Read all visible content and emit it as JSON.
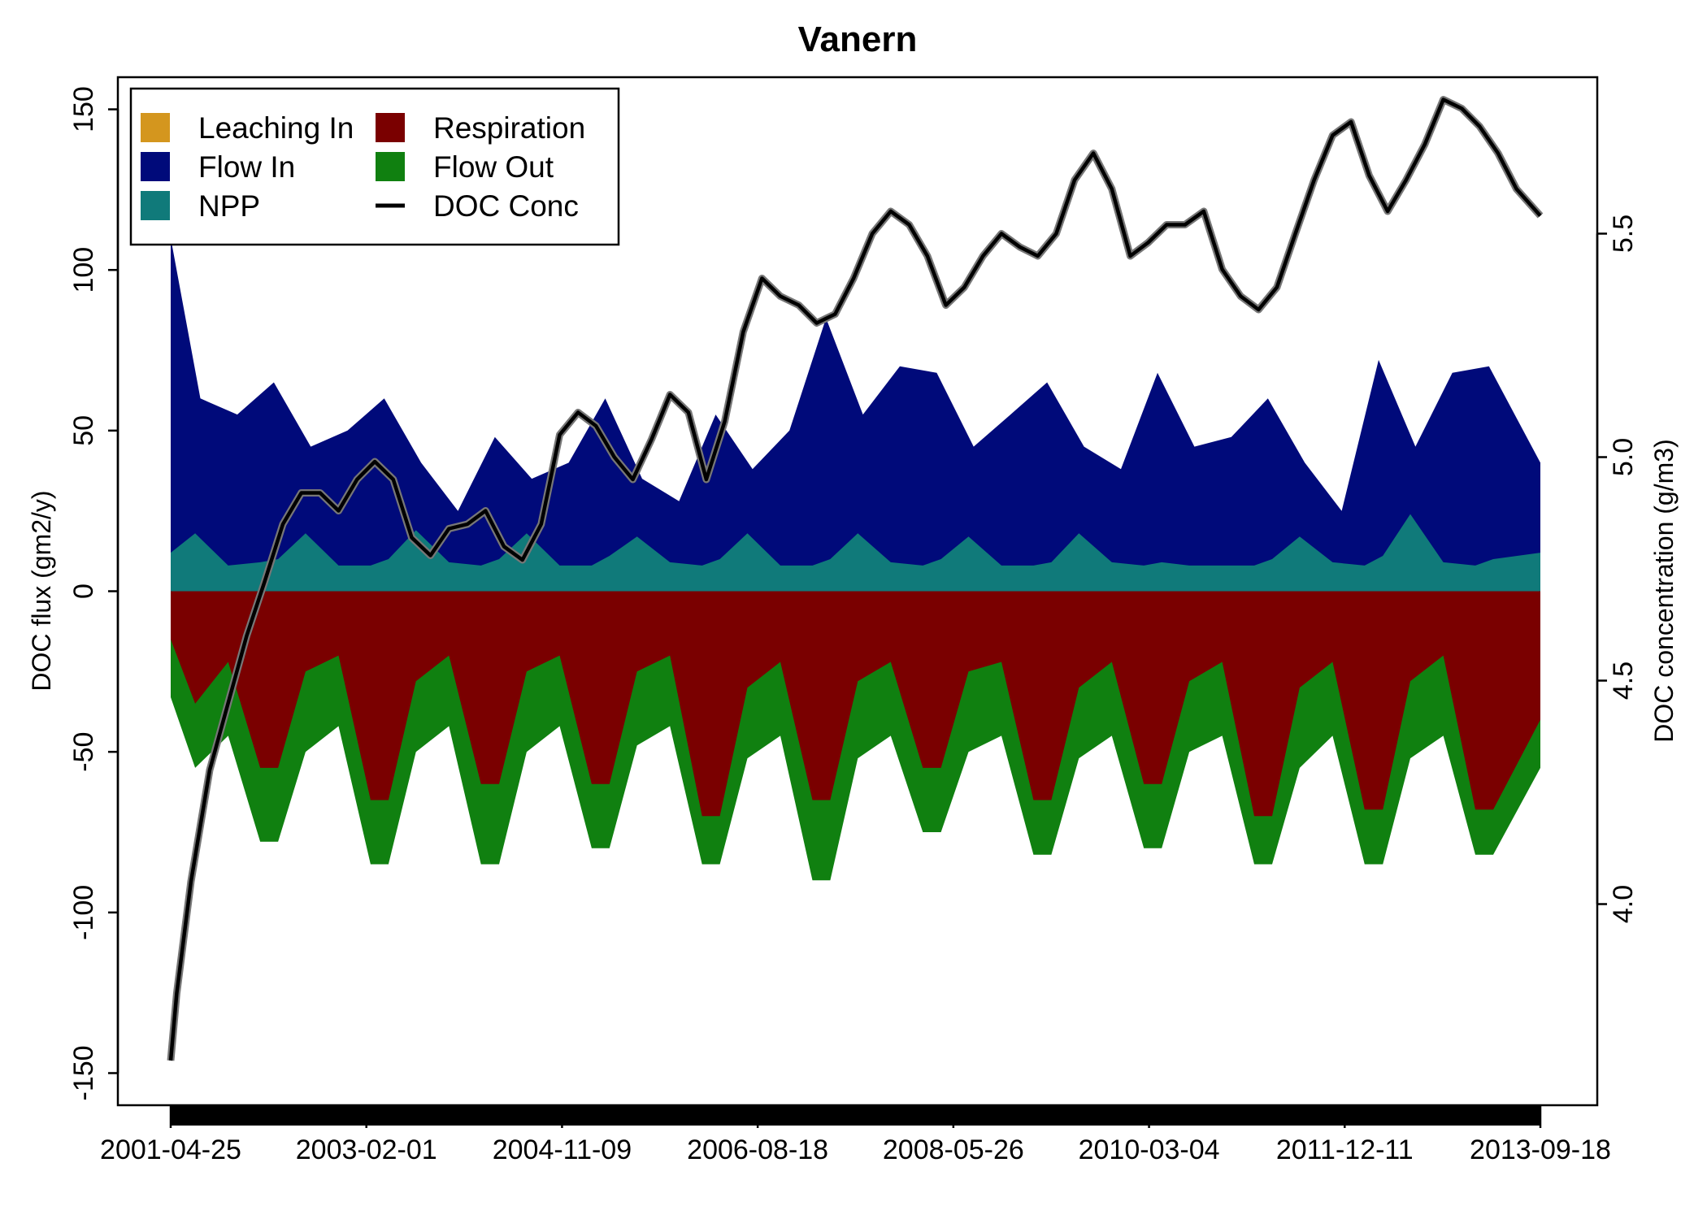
{
  "chart_data": {
    "type": "area",
    "title": "Vanern",
    "ylabel": "DOC flux (gm2/y)",
    "y2label": "DOC concentration (g/m3)",
    "xlabel": "",
    "ylim": [
      -160,
      160
    ],
    "y2lim": [
      3.55,
      5.85
    ],
    "yticks": [
      -150,
      -100,
      -50,
      0,
      50,
      100,
      150
    ],
    "y2ticks": [
      "4.0",
      "4.5",
      "5.0",
      "5.5"
    ],
    "xlim": [
      "2001-04-25",
      "2013-09-18"
    ],
    "xticks": [
      "2001-04-25",
      "2003-02-01",
      "2004-11-09",
      "2006-08-18",
      "2008-05-26",
      "2010-03-04",
      "2011-12-11",
      "2013-09-18"
    ],
    "grid": false,
    "legend_position": "top-left",
    "legend": [
      {
        "label": "Leaching In",
        "color": "#d4961e",
        "kind": "box"
      },
      {
        "label": "Respiration",
        "color": "#7a0000",
        "kind": "box"
      },
      {
        "label": "Flow In",
        "color": "#000a7a",
        "kind": "box"
      },
      {
        "label": "Flow Out",
        "color": "#108010",
        "kind": "box"
      },
      {
        "label": "NPP",
        "color": "#107a7a",
        "kind": "box"
      },
      {
        "label": "DOC Conc",
        "color": "#000000",
        "kind": "line"
      }
    ],
    "colors": {
      "leaching_in": "#d4961e",
      "flow_in": "#000a7a",
      "npp": "#107a7a",
      "respiration": "#7a0000",
      "flow_out": "#108010",
      "doc_conc": "#000000"
    },
    "series": [
      {
        "name": "Flow In",
        "x": [
          "2001-04-25",
          "2001-08-01",
          "2001-12-01",
          "2002-04-01",
          "2002-08-01",
          "2002-12-01",
          "2003-04-01",
          "2003-08-01",
          "2003-12-01",
          "2004-04-01",
          "2004-08-01",
          "2004-12-01",
          "2005-04-01",
          "2005-08-01",
          "2005-12-01",
          "2006-04-01",
          "2006-08-01",
          "2006-12-01",
          "2007-04-01",
          "2007-08-01",
          "2007-12-01",
          "2008-04-01",
          "2008-08-01",
          "2008-12-01",
          "2009-04-01",
          "2009-08-01",
          "2009-12-01",
          "2010-04-01",
          "2010-08-01",
          "2010-12-01",
          "2011-04-01",
          "2011-08-01",
          "2011-12-01",
          "2012-04-01",
          "2012-08-01",
          "2012-12-01",
          "2013-04-01",
          "2013-09-18"
        ],
        "values": [
          110,
          60,
          55,
          65,
          45,
          50,
          60,
          40,
          25,
          48,
          35,
          40,
          60,
          35,
          28,
          55,
          38,
          50,
          85,
          55,
          70,
          68,
          45,
          55,
          65,
          45,
          38,
          68,
          45,
          48,
          60,
          40,
          25,
          72,
          45,
          68,
          70,
          40
        ]
      },
      {
        "name": "NPP",
        "x": [
          "2001-04-25",
          "2001-07-15",
          "2001-11-01",
          "2002-02-15",
          "2002-04-15",
          "2002-07-15",
          "2002-11-01",
          "2003-02-15",
          "2003-04-15",
          "2003-07-15",
          "2003-11-01",
          "2004-02-15",
          "2004-04-15",
          "2004-07-15",
          "2004-11-01",
          "2005-02-15",
          "2005-04-15",
          "2005-07-15",
          "2005-11-01",
          "2006-02-15",
          "2006-04-15",
          "2006-07-15",
          "2006-11-01",
          "2007-02-15",
          "2007-04-15",
          "2007-07-15",
          "2007-11-01",
          "2008-02-15",
          "2008-04-15",
          "2008-07-15",
          "2008-11-01",
          "2009-02-15",
          "2009-04-15",
          "2009-07-15",
          "2009-11-01",
          "2010-02-15",
          "2010-04-15",
          "2010-07-15",
          "2010-11-01",
          "2011-02-15",
          "2011-04-15",
          "2011-07-15",
          "2011-11-01",
          "2012-02-15",
          "2012-04-15",
          "2012-07-15",
          "2012-11-01",
          "2013-02-15",
          "2013-04-15",
          "2013-09-18"
        ],
        "values": [
          12,
          18,
          8,
          9,
          10,
          18,
          8,
          8,
          10,
          19,
          9,
          8,
          10,
          18,
          8,
          8,
          11,
          17,
          9,
          8,
          10,
          18,
          8,
          8,
          10,
          18,
          9,
          8,
          10,
          17,
          8,
          8,
          9,
          18,
          9,
          8,
          9,
          8,
          8,
          8,
          10,
          17,
          9,
          8,
          11,
          24,
          9,
          8,
          10,
          12
        ]
      },
      {
        "name": "Respiration",
        "x": [
          "2001-04-25",
          "2001-07-15",
          "2001-11-01",
          "2002-02-15",
          "2002-04-15",
          "2002-07-15",
          "2002-11-01",
          "2003-02-15",
          "2003-04-15",
          "2003-07-15",
          "2003-11-01",
          "2004-02-15",
          "2004-04-15",
          "2004-07-15",
          "2004-11-01",
          "2005-02-15",
          "2005-04-15",
          "2005-07-15",
          "2005-11-01",
          "2006-02-15",
          "2006-04-15",
          "2006-07-15",
          "2006-11-01",
          "2007-02-15",
          "2007-04-15",
          "2007-07-15",
          "2007-11-01",
          "2008-02-15",
          "2008-04-15",
          "2008-07-15",
          "2008-11-01",
          "2009-02-15",
          "2009-04-15",
          "2009-07-15",
          "2009-11-01",
          "2010-02-15",
          "2010-04-15",
          "2010-07-15",
          "2010-11-01",
          "2011-02-15",
          "2011-04-15",
          "2011-07-15",
          "2011-11-01",
          "2012-02-15",
          "2012-04-15",
          "2012-07-15",
          "2012-11-01",
          "2013-02-15",
          "2013-04-15",
          "2013-09-18"
        ],
        "values": [
          -15,
          -35,
          -22,
          -55,
          -55,
          -25,
          -20,
          -65,
          -65,
          -28,
          -20,
          -60,
          -60,
          -25,
          -20,
          -60,
          -60,
          -25,
          -20,
          -70,
          -70,
          -30,
          -22,
          -65,
          -65,
          -28,
          -22,
          -55,
          -55,
          -25,
          -22,
          -65,
          -65,
          -30,
          -22,
          -60,
          -60,
          -28,
          -22,
          -70,
          -70,
          -30,
          -22,
          -68,
          -68,
          -28,
          -20,
          -68,
          -68,
          -40
        ]
      },
      {
        "name": "Flow Out",
        "x": [
          "2001-04-25",
          "2001-07-15",
          "2001-11-01",
          "2002-02-15",
          "2002-04-15",
          "2002-07-15",
          "2002-11-01",
          "2003-02-15",
          "2003-04-15",
          "2003-07-15",
          "2003-11-01",
          "2004-02-15",
          "2004-04-15",
          "2004-07-15",
          "2004-11-01",
          "2005-02-15",
          "2005-04-15",
          "2005-07-15",
          "2005-11-01",
          "2006-02-15",
          "2006-04-15",
          "2006-07-15",
          "2006-11-01",
          "2007-02-15",
          "2007-04-15",
          "2007-07-15",
          "2007-11-01",
          "2008-02-15",
          "2008-04-15",
          "2008-07-15",
          "2008-11-01",
          "2009-02-15",
          "2009-04-15",
          "2009-07-15",
          "2009-11-01",
          "2010-02-15",
          "2010-04-15",
          "2010-07-15",
          "2010-11-01",
          "2011-02-15",
          "2011-04-15",
          "2011-07-15",
          "2011-11-01",
          "2012-02-15",
          "2012-04-15",
          "2012-07-15",
          "2012-11-01",
          "2013-02-15",
          "2013-04-15",
          "2013-09-18"
        ],
        "values": [
          -33,
          -55,
          -45,
          -78,
          -78,
          -50,
          -42,
          -85,
          -85,
          -50,
          -42,
          -85,
          -85,
          -50,
          -42,
          -80,
          -80,
          -48,
          -42,
          -85,
          -85,
          -52,
          -45,
          -90,
          -90,
          -52,
          -45,
          -75,
          -75,
          -50,
          -45,
          -82,
          -82,
          -52,
          -45,
          -80,
          -80,
          -50,
          -45,
          -85,
          -85,
          -55,
          -45,
          -85,
          -85,
          -52,
          -45,
          -82,
          -82,
          -55
        ]
      },
      {
        "name": "DOC Conc",
        "axis": "right",
        "x": [
          "2001-04-25",
          "2001-05-15",
          "2001-07-01",
          "2001-09-01",
          "2001-11-01",
          "2002-01-01",
          "2002-03-01",
          "2002-05-01",
          "2002-07-01",
          "2002-09-01",
          "2002-11-01",
          "2003-01-01",
          "2003-03-01",
          "2003-05-01",
          "2003-07-01",
          "2003-09-01",
          "2003-11-01",
          "2004-01-01",
          "2004-03-01",
          "2004-05-01",
          "2004-07-01",
          "2004-09-01",
          "2004-11-01",
          "2005-01-01",
          "2005-03-01",
          "2005-05-01",
          "2005-07-01",
          "2005-09-01",
          "2005-11-01",
          "2006-01-01",
          "2006-03-01",
          "2006-05-01",
          "2006-07-01",
          "2006-09-01",
          "2006-11-01",
          "2007-01-01",
          "2007-03-01",
          "2007-05-01",
          "2007-07-01",
          "2007-09-01",
          "2007-11-01",
          "2008-01-01",
          "2008-03-01",
          "2008-05-01",
          "2008-07-01",
          "2008-09-01",
          "2008-11-01",
          "2009-01-01",
          "2009-03-01",
          "2009-05-01",
          "2009-07-01",
          "2009-09-01",
          "2009-11-01",
          "2010-01-01",
          "2010-03-01",
          "2010-05-01",
          "2010-07-01",
          "2010-09-01",
          "2010-11-01",
          "2011-01-01",
          "2011-03-01",
          "2011-05-01",
          "2011-07-01",
          "2011-09-01",
          "2011-11-01",
          "2012-01-01",
          "2012-03-01",
          "2012-05-01",
          "2012-07-01",
          "2012-09-01",
          "2012-11-01",
          "2013-01-01",
          "2013-03-01",
          "2013-05-01",
          "2013-07-01",
          "2013-09-18"
        ],
        "values": [
          3.65,
          3.8,
          4.05,
          4.3,
          4.45,
          4.6,
          4.72,
          4.85,
          4.92,
          4.92,
          4.88,
          4.95,
          4.99,
          4.95,
          4.82,
          4.78,
          4.84,
          4.85,
          4.88,
          4.8,
          4.77,
          4.85,
          5.05,
          5.1,
          5.07,
          5.0,
          4.95,
          5.04,
          5.14,
          5.1,
          4.95,
          5.08,
          5.28,
          5.4,
          5.36,
          5.34,
          5.3,
          5.32,
          5.4,
          5.5,
          5.55,
          5.52,
          5.45,
          5.34,
          5.38,
          5.45,
          5.5,
          5.47,
          5.45,
          5.5,
          5.62,
          5.68,
          5.6,
          5.45,
          5.48,
          5.52,
          5.52,
          5.55,
          5.42,
          5.36,
          5.33,
          5.38,
          5.5,
          5.62,
          5.72,
          5.75,
          5.63,
          5.55,
          5.62,
          5.7,
          5.8,
          5.78,
          5.74,
          5.68,
          5.6,
          5.54
        ]
      }
    ]
  }
}
